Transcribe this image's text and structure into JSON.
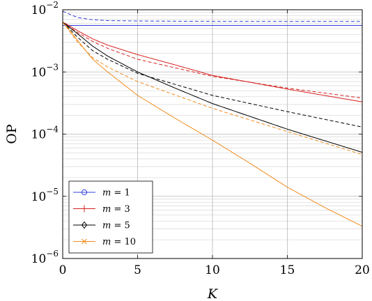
{
  "chart_data": {
    "type": "line",
    "xlabel": "K",
    "ylabel": "OP",
    "xlim": [
      0,
      20
    ],
    "ylim": [
      1e-06,
      0.01
    ],
    "yscale": "log",
    "x_ticks": [
      0,
      5,
      10,
      15,
      20
    ],
    "x_tick_labels": [
      "0",
      "5",
      "10",
      "15",
      "20"
    ],
    "y_ticks": [
      1e-06,
      1e-05,
      0.0001,
      0.001,
      0.01
    ],
    "y_tick_labels": [
      {
        "base": "10",
        "exp": "−6"
      },
      {
        "base": "10",
        "exp": "−5"
      },
      {
        "base": "10",
        "exp": "−4"
      },
      {
        "base": "10",
        "exp": "−3"
      },
      {
        "base": "10",
        "exp": "−2"
      }
    ],
    "grid": true,
    "legend_position": "bottom-left",
    "legend": [
      {
        "var": "m",
        "eq": " = ",
        "value": "1",
        "marker": "circle",
        "color": "#2f3fd8"
      },
      {
        "var": "m",
        "eq": " = ",
        "value": "3",
        "marker": "plus",
        "color": "#d62020"
      },
      {
        "var": "m",
        "eq": " = ",
        "value": "5",
        "marker": "diamond",
        "color": "#000000"
      },
      {
        "var": "m",
        "eq": " = ",
        "value": "10",
        "marker": "cross",
        "color": "#f08c1e"
      }
    ],
    "series": [
      {
        "group": "1",
        "style": "solid",
        "color": "#2f3fd8",
        "x": [
          0,
          0.3,
          1,
          2,
          3,
          5,
          10,
          15,
          20
        ],
        "y": [
          0.0056,
          0.0056,
          0.0056,
          0.0056,
          0.0056,
          0.0056,
          0.0056,
          0.0056,
          0.0056
        ]
      },
      {
        "group": "1",
        "style": "dashed",
        "color": "#2f3fd8",
        "x": [
          0,
          0.3,
          1,
          2,
          3,
          5,
          10,
          15,
          20
        ],
        "y": [
          0.0095,
          0.0088,
          0.0075,
          0.0069,
          0.0067,
          0.0066,
          0.0065,
          0.0065,
          0.0065
        ]
      },
      {
        "group": "3",
        "style": "solid",
        "color": "#d62020",
        "x": [
          0,
          0.3,
          1,
          2,
          3,
          5,
          7.5,
          10,
          15,
          20
        ],
        "y": [
          0.0063,
          0.0058,
          0.0046,
          0.0034,
          0.0027,
          0.0019,
          0.0013,
          0.00088,
          0.00053,
          0.00033
        ]
      },
      {
        "group": "3",
        "style": "dashed",
        "color": "#d62020",
        "x": [
          0,
          0.3,
          1,
          2,
          3,
          5,
          10,
          15,
          20
        ],
        "y": [
          0.0063,
          0.0056,
          0.0043,
          0.0031,
          0.0024,
          0.0016,
          0.00085,
          0.00055,
          0.00038
        ]
      },
      {
        "group": "5",
        "style": "solid",
        "color": "#000000",
        "x": [
          0,
          0.3,
          1,
          2,
          3,
          5,
          7.5,
          10,
          15,
          20
        ],
        "y": [
          0.0063,
          0.0056,
          0.0041,
          0.0026,
          0.0018,
          0.001,
          0.00055,
          0.00031,
          0.00012,
          5.1e-05
        ]
      },
      {
        "group": "5",
        "style": "dashed",
        "color": "#000000",
        "x": [
          0,
          0.3,
          1,
          2,
          3,
          5,
          10,
          15,
          20
        ],
        "y": [
          0.0063,
          0.0054,
          0.0036,
          0.0022,
          0.0016,
          0.00095,
          0.00042,
          0.00023,
          0.00013
        ]
      },
      {
        "group": "10",
        "style": "solid",
        "color": "#f08c1e",
        "x": [
          0,
          0.3,
          1,
          2,
          3,
          5,
          7.5,
          10,
          12.5,
          15,
          17.5,
          20
        ],
        "y": [
          0.0063,
          0.0052,
          0.0032,
          0.0016,
          0.001,
          0.00042,
          0.00018,
          8e-05,
          3.4e-05,
          1.4e-05,
          6.6e-06,
          3.3e-06
        ]
      },
      {
        "group": "10",
        "style": "dashed",
        "color": "#f08c1e",
        "x": [
          0,
          0.3,
          1,
          2,
          3,
          5,
          10,
          15,
          20
        ],
        "y": [
          0.0063,
          0.0051,
          0.003,
          0.0017,
          0.0012,
          0.0007,
          0.00026,
          0.00011,
          4.7e-05
        ]
      }
    ]
  }
}
